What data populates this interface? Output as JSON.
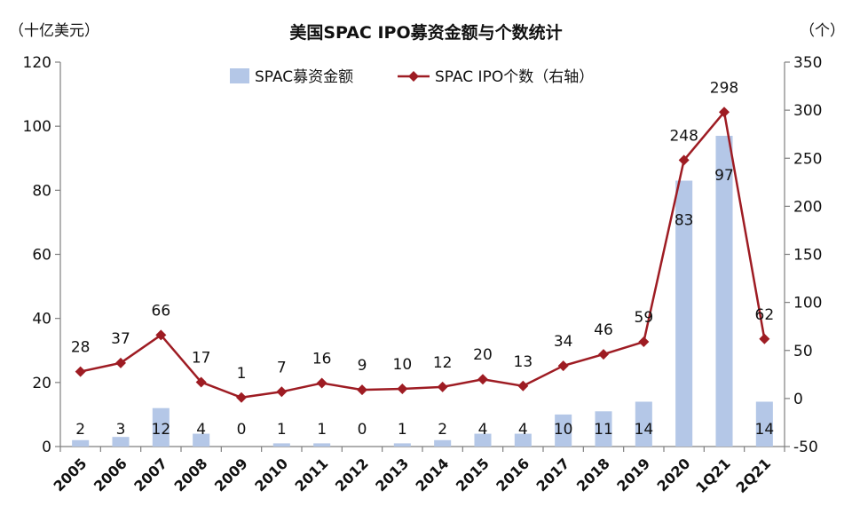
{
  "chart_data": {
    "type": "bar",
    "title": "美国SPAC IPO募资金额与个数统计",
    "left_unit": "（十亿美元）",
    "right_unit": "（个）",
    "categories": [
      "2005",
      "2006",
      "2007",
      "2008",
      "2009",
      "2010",
      "2011",
      "2012",
      "2013",
      "2014",
      "2015",
      "2016",
      "2017",
      "2018",
      "2019",
      "2020",
      "1Q21",
      "2Q21"
    ],
    "y_left": {
      "lim": [
        0,
        120
      ],
      "ticks": [
        "0",
        "20",
        "40",
        "60",
        "80",
        "100",
        "120"
      ],
      "tick_values": [
        0,
        20,
        40,
        60,
        80,
        100,
        120
      ]
    },
    "y_right": {
      "lim": [
        -50,
        350
      ],
      "ticks": [
        "-50",
        "0",
        "50",
        "100",
        "150",
        "200",
        "250",
        "300",
        "350"
      ],
      "tick_values": [
        -50,
        0,
        50,
        100,
        150,
        200,
        250,
        300,
        350
      ]
    },
    "series": [
      {
        "name": "SPAC募资金额",
        "type": "bar",
        "axis": "left",
        "color": "#b4c7e7",
        "values": [
          2,
          3,
          12,
          4,
          0,
          1,
          1,
          0,
          1,
          2,
          4,
          4,
          10,
          11,
          14,
          83,
          97,
          14
        ],
        "labels": [
          "2",
          "3",
          "12",
          "4",
          "0",
          "1",
          "1",
          "0",
          "1",
          "2",
          "4",
          "4",
          "10",
          "11",
          "14",
          "83",
          "97",
          "14"
        ]
      },
      {
        "name": "SPAC IPO个数（右轴）",
        "type": "line",
        "axis": "right",
        "color": "#9e1c23",
        "values": [
          28,
          37,
          66,
          17,
          1,
          7,
          16,
          9,
          10,
          12,
          20,
          13,
          34,
          46,
          59,
          248,
          298,
          62
        ],
        "labels": [
          "28",
          "37",
          "66",
          "17",
          "1",
          "7",
          "16",
          "9",
          "10",
          "12",
          "20",
          "13",
          "34",
          "46",
          "59",
          "248",
          "298",
          "62"
        ]
      }
    ],
    "grid": false,
    "legend_position": "top"
  }
}
